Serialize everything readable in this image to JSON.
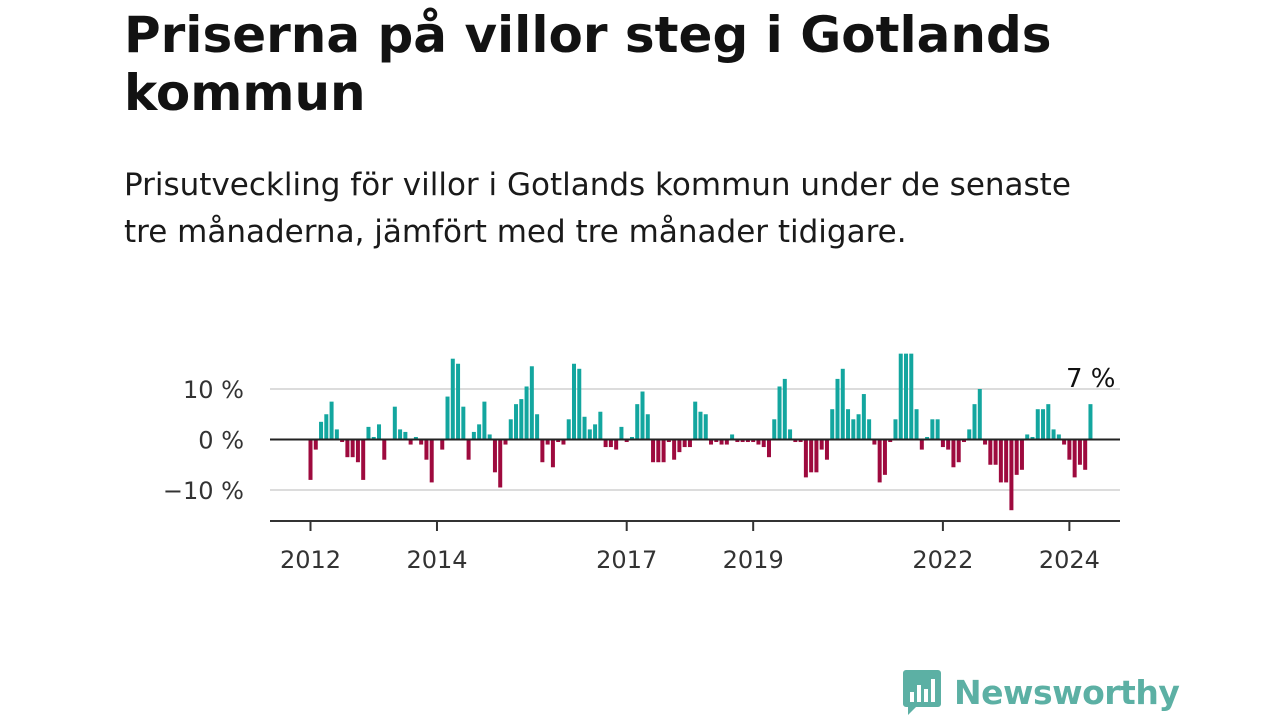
{
  "header": {
    "title": "Priserna på villor steg i Gotlands kommun",
    "subtitle": "Prisutveckling för villor i Gotlands kommun under de senaste tre månaderna, jämfört med tre månader tidigare."
  },
  "brand": {
    "name": "Newsworthy",
    "color": "#5cb0a4"
  },
  "chart_data": {
    "type": "bar",
    "title": "",
    "xlabel": "",
    "ylabel": "",
    "ylim": [
      -15,
      18
    ],
    "y_ticks": [
      {
        "value": 10,
        "label": "10 %"
      },
      {
        "value": 0,
        "label": "0 %"
      },
      {
        "value": -10,
        "label": "−10 %"
      }
    ],
    "x_ticks": [
      {
        "index": 0,
        "label": "2012"
      },
      {
        "index": 24,
        "label": "2014"
      },
      {
        "index": 60,
        "label": "2017"
      },
      {
        "index": 84,
        "label": "2019"
      },
      {
        "index": 120,
        "label": "2022"
      },
      {
        "index": 144,
        "label": "2024"
      }
    ],
    "colors": {
      "positive": "#13a69f",
      "negative": "#9e0a3e"
    },
    "grid": true,
    "annotation": {
      "text": "7 %",
      "value": 7
    },
    "values": [
      -8,
      -2,
      3.5,
      5,
      7.5,
      2,
      -0.5,
      -3.5,
      -3.5,
      -4.5,
      -8,
      2.5,
      0.5,
      3,
      -4,
      0,
      6.5,
      2,
      1.5,
      -1,
      0.5,
      -1,
      -4,
      -8.5,
      0,
      -2,
      8.5,
      16,
      15,
      6.5,
      -4,
      1.5,
      3,
      7.5,
      1,
      -6.5,
      -9.5,
      -1,
      4,
      7,
      8,
      10.5,
      14.5,
      5,
      -4.5,
      -1,
      -5.5,
      -0.5,
      -1,
      4,
      15,
      14,
      4.5,
      2,
      3,
      5.5,
      -1.5,
      -1.5,
      -2,
      2.5,
      -0.5,
      0.5,
      7,
      9.5,
      5,
      -4.5,
      -4.5,
      -4.5,
      -0.5,
      -4,
      -2.5,
      -1.5,
      -1.5,
      7.5,
      5.5,
      5,
      -1,
      -0.5,
      -1,
      -1,
      1,
      -0.5,
      -0.5,
      -0.5,
      -0.5,
      -1,
      -1.5,
      -3.5,
      4,
      10.5,
      12,
      2,
      -0.5,
      -0.5,
      -7.5,
      -6.5,
      -6.5,
      -2,
      -4,
      6,
      12,
      14,
      6,
      4,
      5,
      9,
      4,
      -1,
      -8.5,
      -7,
      -0.5,
      4,
      17,
      17,
      17,
      6,
      -2,
      0.5,
      4,
      4,
      -1.5,
      -2,
      -5.5,
      -4.5,
      -0.5,
      2,
      7,
      10,
      -1,
      -5,
      -5,
      -8.5,
      -8.5,
      -14,
      -7,
      -6,
      1,
      0.5,
      6,
      6,
      7,
      2,
      1,
      -1,
      -4,
      -7.5,
      -5,
      -6,
      7
    ]
  }
}
